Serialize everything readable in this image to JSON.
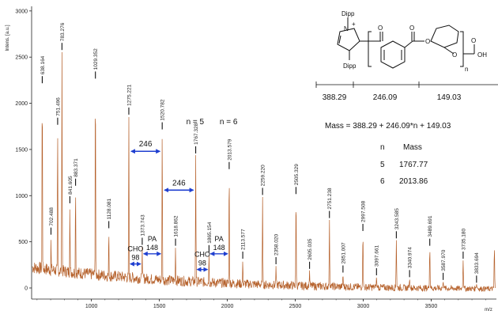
{
  "chart_data": {
    "type": "line",
    "ylabel": "Intens. [a.u.]",
    "xlabel": "m/z",
    "xlim": [
      560,
      3980
    ],
    "ylim": [
      -120,
      3050
    ],
    "x_ticks": [
      1000,
      1500,
      2000,
      2500,
      3000,
      3500
    ],
    "y_ticks": [
      0,
      500,
      1000,
      1500,
      2000,
      2500,
      3000
    ],
    "line_color": "#b5602a",
    "baseline_level": 250,
    "peaks": [
      {
        "x": 638.164,
        "y": 2200,
        "label": "638.164"
      },
      {
        "x": 702.488,
        "y": 560,
        "label": "702.488"
      },
      {
        "x": 751.496,
        "y": 1750,
        "label": "751.496"
      },
      {
        "x": 783.276,
        "y": 2560,
        "label": "783.276"
      },
      {
        "x": 841.605,
        "y": 900,
        "label": "841.605"
      },
      {
        "x": 883.371,
        "y": 1090,
        "label": "883.371"
      },
      {
        "x": 1029.352,
        "y": 2250,
        "label": "1029.352"
      },
      {
        "x": 1128.081,
        "y": 630,
        "label": "1128.081"
      },
      {
        "x": 1275.221,
        "y": 1860,
        "label": "1275.221"
      },
      {
        "x": 1373.743,
        "y": 450,
        "label": "1373.743"
      },
      {
        "x": 1520.782,
        "y": 1700,
        "label": "1520.782"
      },
      {
        "x": 1618.862,
        "y": 440,
        "label": "1618.862"
      },
      {
        "x": 1767.328,
        "y": 1440,
        "label": "1767.328"
      },
      {
        "x": 1865.154,
        "y": 370,
        "label": "1865.154"
      },
      {
        "x": 2013.579,
        "y": 1270,
        "label": "2013.579"
      },
      {
        "x": 2113.577,
        "y": 300,
        "label": "2113.577"
      },
      {
        "x": 2259.22,
        "y": 990,
        "label": "2259.220"
      },
      {
        "x": 2358.02,
        "y": 240,
        "label": "2358.020"
      },
      {
        "x": 2505.329,
        "y": 1000,
        "label": "2505.329"
      },
      {
        "x": 2605.035,
        "y": 190,
        "label": "2605.035"
      },
      {
        "x": 2751.238,
        "y": 740,
        "label": "2751.238"
      },
      {
        "x": 2851.007,
        "y": 150,
        "label": "2851.007"
      },
      {
        "x": 2997.508,
        "y": 600,
        "label": "2997.508"
      },
      {
        "x": 3097.661,
        "y": 120,
        "label": "3097.661"
      },
      {
        "x": 3243.585,
        "y": 520,
        "label": "3243.585"
      },
      {
        "x": 3340.974,
        "y": 100,
        "label": "3340.974"
      },
      {
        "x": 3489.691,
        "y": 440,
        "label": "3489.691"
      },
      {
        "x": 3587.97,
        "y": 70,
        "label": "3587.970"
      },
      {
        "x": 3735.18,
        "y": 300,
        "label": "3735.180"
      },
      {
        "x": 3833.694,
        "y": 40,
        "label": "3833.694"
      },
      {
        "x": 3965,
        "y": 450,
        "label": ""
      }
    ],
    "annotations": {
      "n_labels": [
        {
          "text": "n = 5",
          "x": 1767.328,
          "y": 1600
        },
        {
          "text": "n = 6",
          "x": 2013.579,
          "y": 1600
        }
      ],
      "spacing_arrows": [
        {
          "from": 1275.221,
          "to": 1520.782,
          "y": 1480,
          "label": "246"
        },
        {
          "from": 1520.782,
          "to": 1767.328,
          "y": 1060,
          "label": "246"
        }
      ],
      "small_arrows": [
        {
          "from": 1275,
          "to": 1373,
          "y": 260,
          "label_top": "CHO",
          "label_bottom": "98"
        },
        {
          "from": 1373,
          "to": 1521,
          "y": 370,
          "label_top": "PA",
          "label_bottom": "148"
        },
        {
          "from": 1767,
          "to": 1865,
          "y": 200,
          "label_top": "CHO",
          "label_bottom": "98"
        },
        {
          "from": 1865,
          "to": 2013,
          "y": 370,
          "label_top": "PA",
          "label_bottom": "148"
        }
      ]
    }
  },
  "structure": {
    "dipp_top": "Dipp",
    "dipp_bottom": "Dipp",
    "n_atom": "N",
    "plus_sign": "+",
    "o1": "O",
    "o2": "O",
    "o3": "O",
    "o4": "O",
    "o5": "O",
    "oh": "OH",
    "subscript_n": "n",
    "fragments": [
      "388.29",
      "246.09",
      "149.03"
    ]
  },
  "mass_formula": "Mass = 388.29 + 246.09*n + 149.03",
  "mass_table": {
    "headers": [
      "n",
      "Mass"
    ],
    "rows": [
      [
        "5",
        "1767.77"
      ],
      [
        "6",
        "2013.86"
      ]
    ]
  }
}
